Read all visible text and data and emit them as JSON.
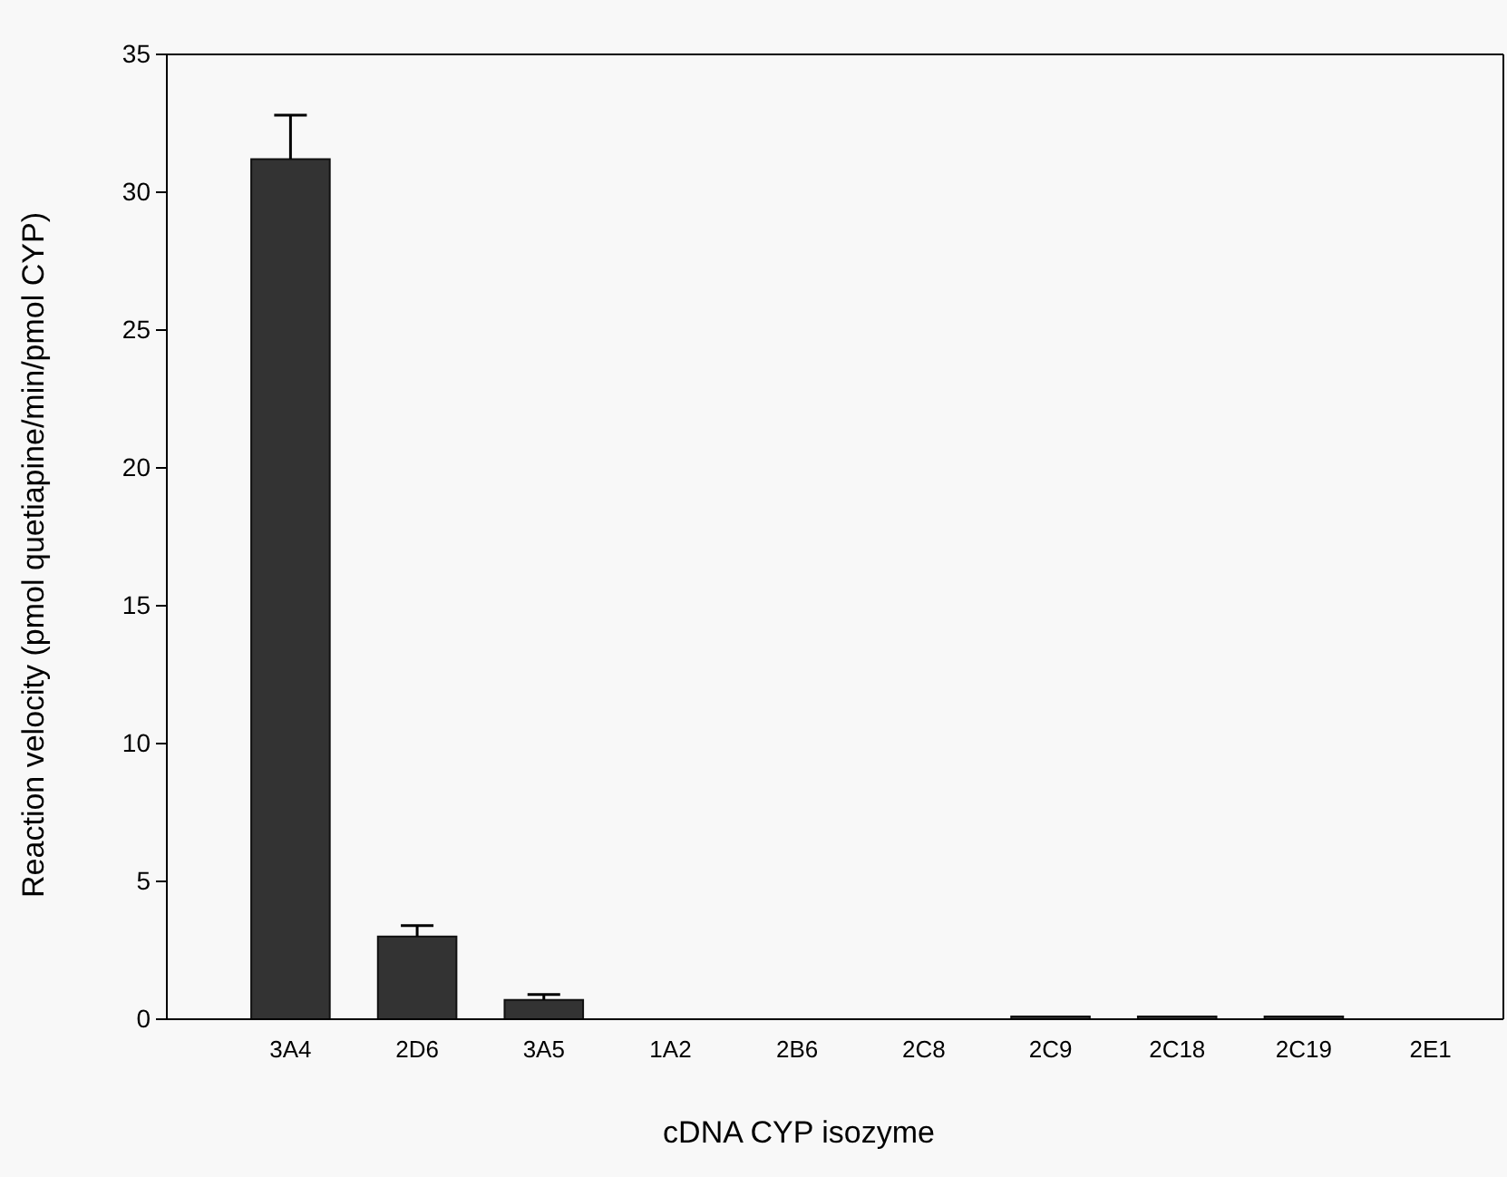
{
  "chart_data": {
    "type": "bar",
    "xlabel": "cDNA CYP isozyme",
    "ylabel": "Reaction velocity  (pmol quetiapine/min/pmol CYP)",
    "categories": [
      "3A4",
      "2D6",
      "3A5",
      "1A2",
      "2B6",
      "2C8",
      "2C9",
      "2C18",
      "2C19",
      "2E1"
    ],
    "values": [
      31.2,
      3.0,
      0.7,
      0,
      0,
      0,
      0.1,
      0.1,
      0.1,
      0
    ],
    "errors": [
      1.6,
      0.4,
      0.2,
      null,
      null,
      null,
      null,
      null,
      null,
      null
    ],
    "color": "#333333",
    "ylim": [
      0,
      35
    ],
    "yticks": [
      0,
      5,
      10,
      15,
      20,
      25,
      30,
      35
    ],
    "grid": false
  }
}
